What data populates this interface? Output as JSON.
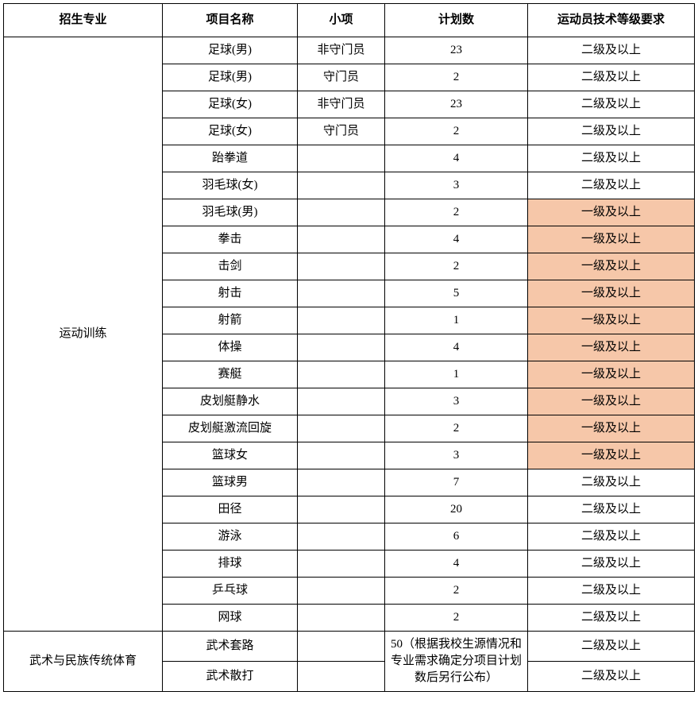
{
  "highlight_color": "#f6c7a9",
  "columns": [
    "招生专业",
    "项目名称",
    "小项",
    "计划数",
    "运动员技术等级要求"
  ],
  "majors": [
    {
      "name": "运动训练",
      "rowspan": 22,
      "rows": [
        {
          "project": "足球(男)",
          "sub": "非守门员",
          "plan": "23",
          "req": "二级及以上",
          "hl": false
        },
        {
          "project": "足球(男)",
          "sub": "守门员",
          "plan": "2",
          "req": "二级及以上",
          "hl": false
        },
        {
          "project": "足球(女)",
          "sub": "非守门员",
          "plan": "23",
          "req": "二级及以上",
          "hl": false
        },
        {
          "project": "足球(女)",
          "sub": "守门员",
          "plan": "2",
          "req": "二级及以上",
          "hl": false
        },
        {
          "project": "跆拳道",
          "sub": "",
          "plan": "4",
          "req": "二级及以上",
          "hl": false
        },
        {
          "project": "羽毛球(女)",
          "sub": "",
          "plan": "3",
          "req": "二级及以上",
          "hl": false
        },
        {
          "project": "羽毛球(男)",
          "sub": "",
          "plan": "2",
          "req": "一级及以上",
          "hl": true
        },
        {
          "project": "拳击",
          "sub": "",
          "plan": "4",
          "req": "一级及以上",
          "hl": true
        },
        {
          "project": "击剑",
          "sub": "",
          "plan": "2",
          "req": "一级及以上",
          "hl": true
        },
        {
          "project": "射击",
          "sub": "",
          "plan": "5",
          "req": "一级及以上",
          "hl": true
        },
        {
          "project": "射箭",
          "sub": "",
          "plan": "1",
          "req": "一级及以上",
          "hl": true
        },
        {
          "project": "体操",
          "sub": "",
          "plan": "4",
          "req": "一级及以上",
          "hl": true
        },
        {
          "project": "赛艇",
          "sub": "",
          "plan": "1",
          "req": "一级及以上",
          "hl": true
        },
        {
          "project": "皮划艇静水",
          "sub": "",
          "plan": "3",
          "req": "一级及以上",
          "hl": true
        },
        {
          "project": "皮划艇激流回旋",
          "sub": "",
          "plan": "2",
          "req": "一级及以上",
          "hl": true
        },
        {
          "project": "篮球女",
          "sub": "",
          "plan": "3",
          "req": "一级及以上",
          "hl": true
        },
        {
          "project": "篮球男",
          "sub": "",
          "plan": "7",
          "req": "二级及以上",
          "hl": false
        },
        {
          "project": "田径",
          "sub": "",
          "plan": "20",
          "req": "二级及以上",
          "hl": false
        },
        {
          "project": "游泳",
          "sub": "",
          "plan": "6",
          "req": "二级及以上",
          "hl": false
        },
        {
          "project": "排球",
          "sub": "",
          "plan": "4",
          "req": "二级及以上",
          "hl": false
        },
        {
          "project": "乒乓球",
          "sub": "",
          "plan": "2",
          "req": "二级及以上",
          "hl": false
        },
        {
          "project": "网球",
          "sub": "",
          "plan": "2",
          "req": "二级及以上",
          "hl": false
        }
      ]
    },
    {
      "name": "武术与民族传统体育",
      "rowspan": 2,
      "merged_plan": {
        "text": "50（根据我校生源情况和专业需求确定分项目计划数后另行公布）",
        "rowspan": 2
      },
      "rows": [
        {
          "project": "武术套路",
          "sub": "",
          "req": "二级及以上",
          "hl": false
        },
        {
          "project": "武术散打",
          "sub": "",
          "req": "二级及以上",
          "hl": false
        }
      ]
    }
  ]
}
